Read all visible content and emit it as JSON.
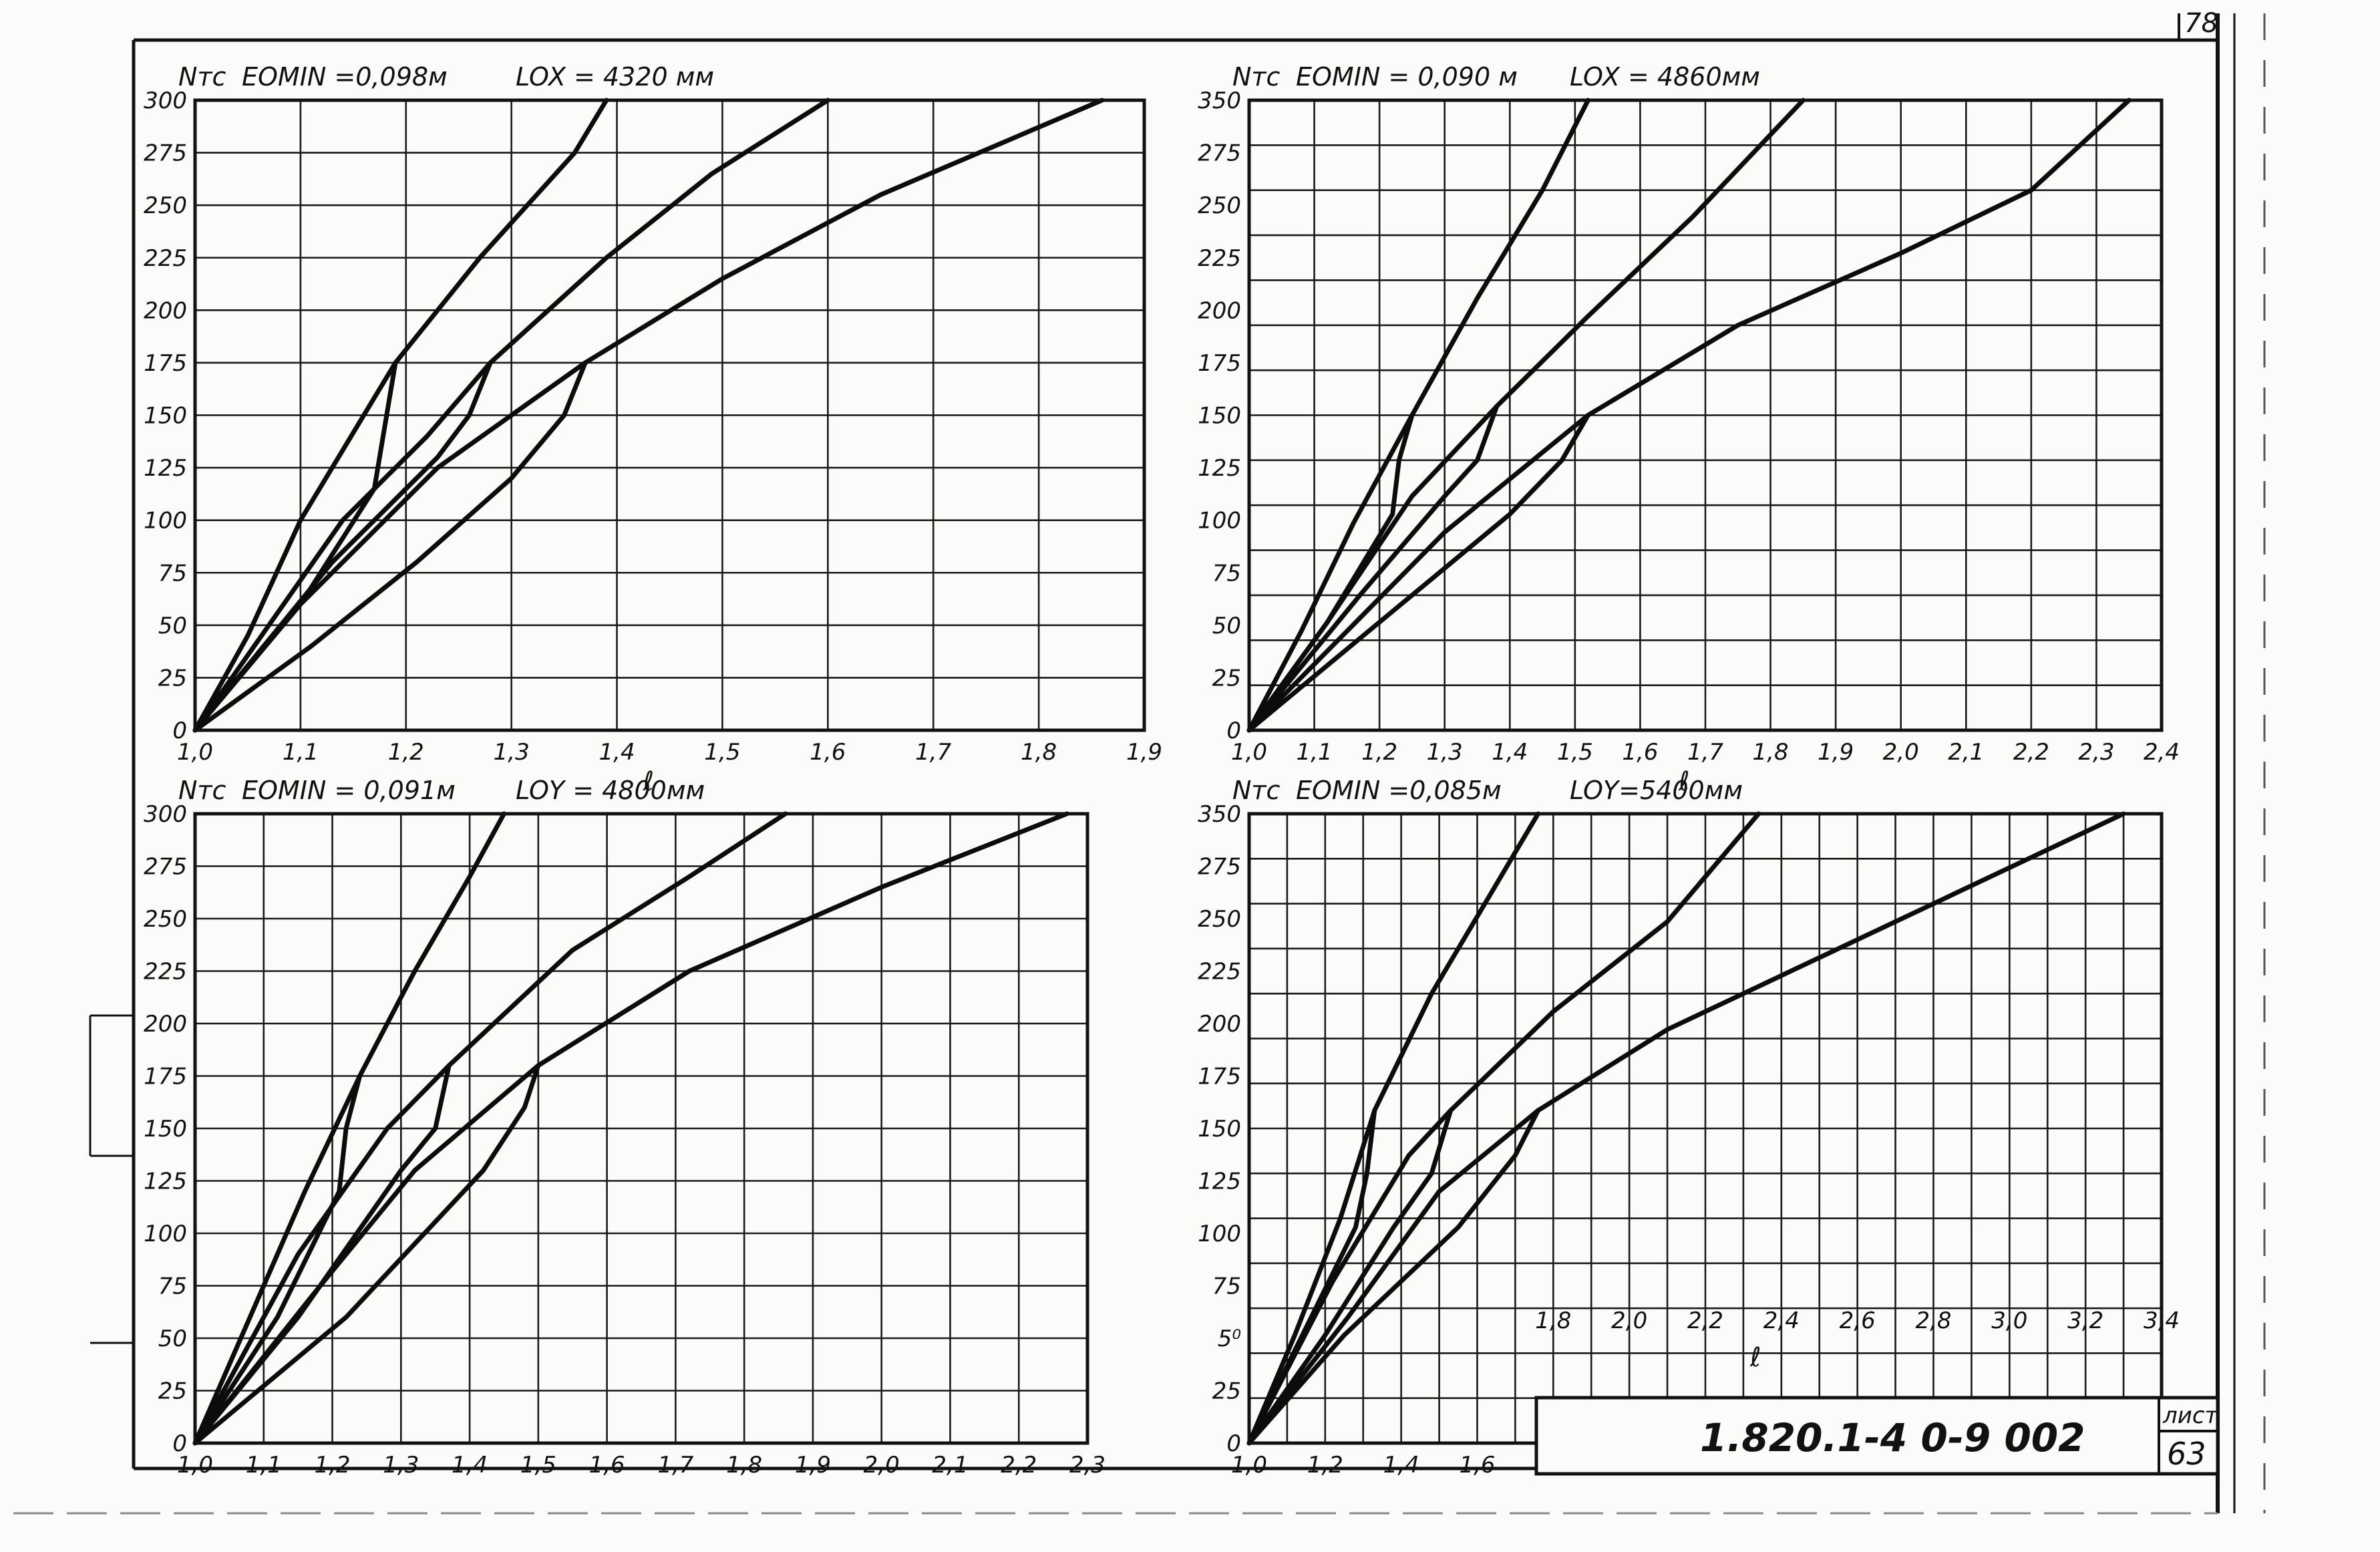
{
  "sheet_number": "78",
  "stamp": {
    "code": "1.820.1-4  0-9  002",
    "label": "лист",
    "page": "63"
  },
  "chart_data": [
    {
      "type": "line",
      "id": "top-left",
      "y_label": "Nтс",
      "x_label": "ℓ",
      "header": [
        "EOMIN =0,098м",
        "LOX = 4320 мм"
      ],
      "xlim": [
        1.0,
        1.9
      ],
      "x_step": 0.1,
      "ylim": [
        0,
        300
      ],
      "y_step": 25,
      "x_ticks": [
        "1,0",
        "1,1",
        "1,2",
        "1,3",
        "1,4",
        "1,5",
        "1,6",
        "1,7",
        "1,8",
        "1,9"
      ],
      "y_ticks": [
        "0",
        "25",
        "50",
        "75",
        "100",
        "125",
        "150",
        "175",
        "200",
        "225",
        "250",
        "275",
        "300"
      ],
      "series": [
        {
          "points": [
            [
              1.0,
              0
            ],
            [
              1.05,
              45
            ],
            [
              1.1,
              100
            ],
            [
              1.19,
              175
            ],
            [
              1.27,
              225
            ],
            [
              1.36,
              275
            ],
            [
              1.39,
              300
            ]
          ]
        },
        {
          "points": [
            [
              1.0,
              0
            ],
            [
              1.14,
              100
            ],
            [
              1.22,
              140
            ],
            [
              1.28,
              175
            ],
            [
              1.39,
              225
            ],
            [
              1.49,
              265
            ],
            [
              1.6,
              300
            ]
          ]
        },
        {
          "points": [
            [
              1.0,
              0
            ],
            [
              1.1,
              60
            ],
            [
              1.23,
              125
            ],
            [
              1.37,
              175
            ],
            [
              1.5,
              215
            ],
            [
              1.65,
              255
            ],
            [
              1.86,
              300
            ]
          ]
        },
        {
          "points": [
            [
              1.0,
              0
            ],
            [
              1.1,
              60
            ],
            [
              1.17,
              115
            ],
            [
              1.19,
              175
            ]
          ]
        },
        {
          "points": [
            [
              1.0,
              0
            ],
            [
              1.13,
              80
            ],
            [
              1.23,
              130
            ],
            [
              1.26,
              150
            ],
            [
              1.28,
              175
            ]
          ]
        },
        {
          "points": [
            [
              1.0,
              0
            ],
            [
              1.11,
              40
            ],
            [
              1.21,
              80
            ],
            [
              1.3,
              120
            ],
            [
              1.35,
              150
            ],
            [
              1.37,
              175
            ]
          ]
        }
      ]
    },
    {
      "type": "line",
      "id": "top-right",
      "y_label": "Nтс",
      "x_label": "ℓ",
      "header": [
        "EOMIN = 0,090 м",
        "LOX = 4860мм"
      ],
      "xlim": [
        1.0,
        2.4
      ],
      "x_step": 0.1,
      "ylim": [
        0,
        350
      ],
      "y_step": 25,
      "x_ticks": [
        "1,0",
        "1,1",
        "1,2",
        "1,3",
        "1,4",
        "1,5",
        "1,6",
        "1,7",
        "1,8",
        "1,9",
        "2,0",
        "2,1",
        "2,2",
        "2,3",
        "2,4"
      ],
      "y_ticks": [
        "0",
        "25",
        "50",
        "75",
        "100",
        "125",
        "150",
        "175",
        "200",
        "225",
        "250",
        "275",
        "350"
      ],
      "series": [
        {
          "points": [
            [
              1.0,
              0
            ],
            [
              1.08,
              55
            ],
            [
              1.16,
              115
            ],
            [
              1.25,
              175
            ],
            [
              1.35,
              240
            ],
            [
              1.45,
              300
            ],
            [
              1.52,
              350
            ]
          ]
        },
        {
          "points": [
            [
              1.0,
              0
            ],
            [
              1.12,
              60
            ],
            [
              1.25,
              130
            ],
            [
              1.38,
              180
            ],
            [
              1.52,
              230
            ],
            [
              1.68,
              285
            ],
            [
              1.85,
              350
            ]
          ]
        },
        {
          "points": [
            [
              1.0,
              0
            ],
            [
              1.15,
              55
            ],
            [
              1.3,
              110
            ],
            [
              1.52,
              175
            ],
            [
              1.75,
              225
            ],
            [
              2.0,
              265
            ],
            [
              2.2,
              300
            ],
            [
              2.35,
              350
            ]
          ]
        },
        {
          "points": [
            [
              1.0,
              0
            ],
            [
              1.12,
              60
            ],
            [
              1.22,
              120
            ],
            [
              1.23,
              150
            ],
            [
              1.25,
              175
            ]
          ]
        },
        {
          "points": [
            [
              1.0,
              0
            ],
            [
              1.17,
              75
            ],
            [
              1.3,
              130
            ],
            [
              1.35,
              150
            ],
            [
              1.38,
              180
            ]
          ]
        },
        {
          "points": [
            [
              1.0,
              0
            ],
            [
              1.2,
              60
            ],
            [
              1.4,
              120
            ],
            [
              1.48,
              150
            ],
            [
              1.52,
              175
            ]
          ]
        }
      ]
    },
    {
      "type": "line",
      "id": "bottom-left",
      "y_label": "Nтс",
      "x_label": "",
      "header": [
        "EOMIN = 0,091м",
        "LOY = 4800мм"
      ],
      "xlim": [
        1.0,
        2.3
      ],
      "x_step": 0.1,
      "ylim": [
        0,
        300
      ],
      "y_step": 25,
      "x_ticks": [
        "1,0",
        "1,1",
        "1,2",
        "1,3",
        "1,4",
        "1,5",
        "1,6",
        "1,7",
        "1,8",
        "1,9",
        "2,0",
        "2,1",
        "2,2",
        "2,3"
      ],
      "y_ticks": [
        "0",
        "25",
        "50",
        "75",
        "100",
        "125",
        "150",
        "175",
        "200",
        "225",
        "250",
        "275",
        "300"
      ],
      "series": [
        {
          "points": [
            [
              1.0,
              0
            ],
            [
              1.08,
              60
            ],
            [
              1.16,
              120
            ],
            [
              1.24,
              175
            ],
            [
              1.32,
              225
            ],
            [
              1.4,
              270
            ],
            [
              1.45,
              300
            ]
          ]
        },
        {
          "points": [
            [
              1.0,
              0
            ],
            [
              1.15,
              90
            ],
            [
              1.28,
              150
            ],
            [
              1.37,
              180
            ],
            [
              1.55,
              235
            ],
            [
              1.72,
              270
            ],
            [
              1.86,
              300
            ]
          ]
        },
        {
          "points": [
            [
              1.0,
              0
            ],
            [
              1.17,
              70
            ],
            [
              1.32,
              130
            ],
            [
              1.5,
              180
            ],
            [
              1.72,
              225
            ],
            [
              2.0,
              265
            ],
            [
              2.27,
              300
            ]
          ]
        },
        {
          "points": [
            [
              1.0,
              0
            ],
            [
              1.12,
              60
            ],
            [
              1.21,
              120
            ],
            [
              1.22,
              150
            ],
            [
              1.24,
              175
            ]
          ]
        },
        {
          "points": [
            [
              1.0,
              0
            ],
            [
              1.15,
              60
            ],
            [
              1.3,
              130
            ],
            [
              1.35,
              150
            ],
            [
              1.37,
              180
            ]
          ]
        },
        {
          "points": [
            [
              1.0,
              0
            ],
            [
              1.22,
              60
            ],
            [
              1.42,
              130
            ],
            [
              1.48,
              160
            ],
            [
              1.5,
              180
            ]
          ]
        }
      ]
    },
    {
      "type": "line",
      "id": "bottom-right",
      "y_label": "Nтс",
      "x_label": "ℓ",
      "header": [
        "EOMIN =0,085м",
        "LOY=5400мм"
      ],
      "xlim": [
        1.0,
        3.4
      ],
      "x_step": 0.1,
      "ylim": [
        0,
        350
      ],
      "y_step": 25,
      "x_ticks_lower": [
        "1,0",
        "1,2",
        "1,4",
        "1,6"
      ],
      "x_ticks_upper": [
        "1,8",
        "2,0",
        "2,2",
        "2,4",
        "2,6",
        "2,8",
        "3,0",
        "3,2",
        "3,4"
      ],
      "y_ticks": [
        "0",
        "25",
        "5⁰",
        "75",
        "100",
        "125",
        "150",
        "175",
        "200",
        "225",
        "250",
        "275",
        "350"
      ],
      "series": [
        {
          "points": [
            [
              1.0,
              0
            ],
            [
              1.12,
              60
            ],
            [
              1.24,
              125
            ],
            [
              1.33,
              185
            ],
            [
              1.48,
              250
            ],
            [
              1.62,
              300
            ],
            [
              1.76,
              350
            ]
          ]
        },
        {
          "points": [
            [
              1.0,
              0
            ],
            [
              1.22,
              90
            ],
            [
              1.42,
              160
            ],
            [
              1.53,
              185
            ],
            [
              1.8,
              240
            ],
            [
              2.1,
              290
            ],
            [
              2.34,
              350
            ]
          ]
        },
        {
          "points": [
            [
              1.0,
              0
            ],
            [
              1.26,
              70
            ],
            [
              1.5,
              140
            ],
            [
              1.76,
              185
            ],
            [
              2.1,
              230
            ],
            [
              2.6,
              280
            ],
            [
              3.3,
              350
            ]
          ]
        },
        {
          "points": [
            [
              1.0,
              0
            ],
            [
              1.14,
              60
            ],
            [
              1.28,
              120
            ],
            [
              1.31,
              150
            ],
            [
              1.33,
              185
            ]
          ]
        },
        {
          "points": [
            [
              1.0,
              0
            ],
            [
              1.2,
              60
            ],
            [
              1.38,
              120
            ],
            [
              1.48,
              150
            ],
            [
              1.53,
              185
            ]
          ]
        },
        {
          "points": [
            [
              1.0,
              0
            ],
            [
              1.25,
              60
            ],
            [
              1.55,
              120
            ],
            [
              1.7,
              160
            ],
            [
              1.76,
              185
            ]
          ]
        }
      ]
    }
  ]
}
